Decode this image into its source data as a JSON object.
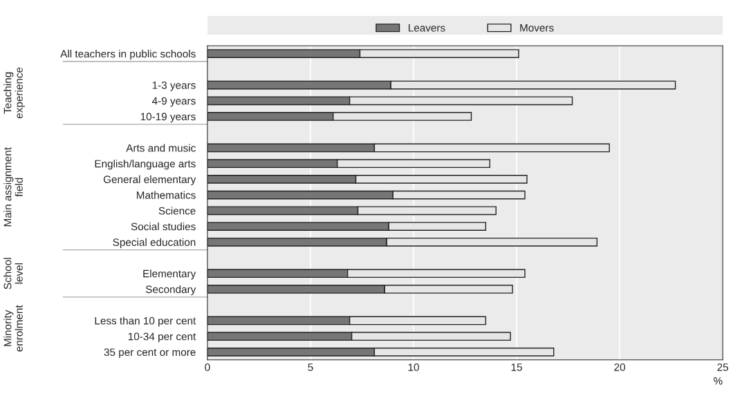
{
  "chart_data": {
    "type": "bar",
    "orientation": "horizontal",
    "stacked": true,
    "categories": [
      "All teachers in public schools",
      null,
      "1-3 years",
      "4-9 years",
      "10-19 years",
      null,
      "Arts and music",
      "English/language arts",
      "General elementary",
      "Mathematics",
      "Science",
      "Social studies",
      "Special education",
      null,
      "Elementary",
      "Secondary",
      null,
      "Less than 10 per cent",
      "10-34 per cent",
      "35 per cent or more"
    ],
    "series": [
      {
        "name": "Leavers",
        "color": "#767676",
        "values": [
          7.4,
          null,
          8.9,
          6.9,
          6.1,
          null,
          8.1,
          6.3,
          7.2,
          9.0,
          7.3,
          8.8,
          8.7,
          null,
          6.8,
          8.6,
          null,
          6.9,
          7.0,
          8.1
        ]
      },
      {
        "name": "Movers",
        "color": "#e6e6e6",
        "values": [
          7.7,
          null,
          13.8,
          10.8,
          6.7,
          null,
          11.4,
          7.4,
          8.3,
          6.4,
          6.7,
          4.7,
          10.2,
          null,
          8.6,
          6.2,
          null,
          6.6,
          7.7,
          8.7
        ]
      }
    ],
    "xlim": [
      0,
      25
    ],
    "xticks": [
      0,
      5,
      10,
      15,
      20,
      25
    ],
    "xlabel": "%",
    "grid": "x",
    "legend": "top",
    "annotations": [
      "Teaching experience",
      "Main assignment field",
      "School level",
      "Minority enrolment"
    ]
  }
}
